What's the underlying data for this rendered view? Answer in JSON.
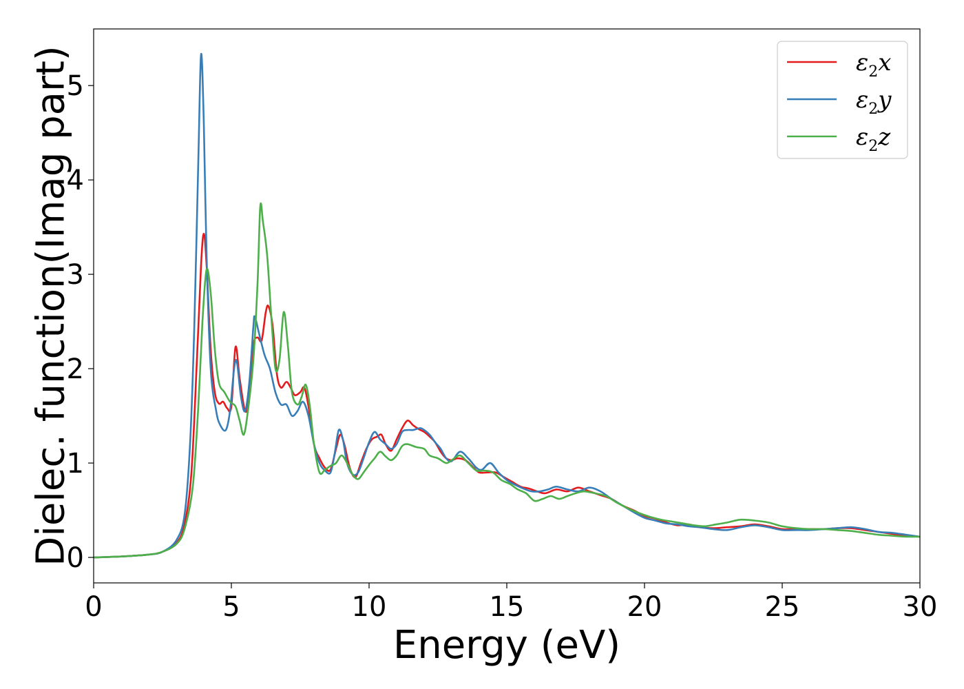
{
  "chart_data": {
    "type": "line",
    "xlabel": "Energy (eV)",
    "ylabel": "Dielec. function(Imag part)",
    "xlim": [
      0,
      30
    ],
    "ylim": [
      -0.27,
      5.6
    ],
    "xticks": [
      0,
      5,
      10,
      15,
      20,
      25,
      30
    ],
    "yticks": [
      0,
      1,
      2,
      3,
      4,
      5
    ],
    "grid": false,
    "legend_position": "top-right",
    "series": [
      {
        "name": "ε₂x",
        "label_base": "ε",
        "label_sub": "2",
        "label_var": "x",
        "color": "#e41a1c",
        "points": [
          [
            0,
            0.0
          ],
          [
            1,
            0.01
          ],
          [
            2,
            0.03
          ],
          [
            2.5,
            0.06
          ],
          [
            3.0,
            0.15
          ],
          [
            3.3,
            0.35
          ],
          [
            3.55,
            0.9
          ],
          [
            3.75,
            2.1
          ],
          [
            3.9,
            3.1
          ],
          [
            4.0,
            3.43
          ],
          [
            4.1,
            3.1
          ],
          [
            4.25,
            2.2
          ],
          [
            4.4,
            1.75
          ],
          [
            4.55,
            1.63
          ],
          [
            4.7,
            1.65
          ],
          [
            4.85,
            1.58
          ],
          [
            5.0,
            1.6
          ],
          [
            5.15,
            2.23
          ],
          [
            5.3,
            1.9
          ],
          [
            5.5,
            1.55
          ],
          [
            5.65,
            1.7
          ],
          [
            5.8,
            2.25
          ],
          [
            5.95,
            2.33
          ],
          [
            6.1,
            2.3
          ],
          [
            6.25,
            2.6
          ],
          [
            6.35,
            2.66
          ],
          [
            6.5,
            2.45
          ],
          [
            6.65,
            1.95
          ],
          [
            6.8,
            1.8
          ],
          [
            7.0,
            1.86
          ],
          [
            7.15,
            1.8
          ],
          [
            7.3,
            1.72
          ],
          [
            7.5,
            1.75
          ],
          [
            7.65,
            1.8
          ],
          [
            7.8,
            1.6
          ],
          [
            8.0,
            1.2
          ],
          [
            8.2,
            1.05
          ],
          [
            8.4,
            0.95
          ],
          [
            8.6,
            0.93
          ],
          [
            8.8,
            1.15
          ],
          [
            8.95,
            1.3
          ],
          [
            9.1,
            1.2
          ],
          [
            9.3,
            0.95
          ],
          [
            9.5,
            0.85
          ],
          [
            9.7,
            1.0
          ],
          [
            9.9,
            1.15
          ],
          [
            10.1,
            1.25
          ],
          [
            10.3,
            1.28
          ],
          [
            10.45,
            1.3
          ],
          [
            10.6,
            1.2
          ],
          [
            10.8,
            1.13
          ],
          [
            11.0,
            1.25
          ],
          [
            11.2,
            1.37
          ],
          [
            11.4,
            1.45
          ],
          [
            11.6,
            1.4
          ],
          [
            11.8,
            1.36
          ],
          [
            12.0,
            1.33
          ],
          [
            12.2,
            1.28
          ],
          [
            12.4,
            1.22
          ],
          [
            12.6,
            1.12
          ],
          [
            12.8,
            1.05
          ],
          [
            13.0,
            1.03
          ],
          [
            13.2,
            1.05
          ],
          [
            13.5,
            1.03
          ],
          [
            13.8,
            0.95
          ],
          [
            14.0,
            0.9
          ],
          [
            14.3,
            0.9
          ],
          [
            14.6,
            0.9
          ],
          [
            14.9,
            0.85
          ],
          [
            15.2,
            0.8
          ],
          [
            15.5,
            0.75
          ],
          [
            15.8,
            0.73
          ],
          [
            16.1,
            0.7
          ],
          [
            16.4,
            0.68
          ],
          [
            16.8,
            0.72
          ],
          [
            17.2,
            0.7
          ],
          [
            17.6,
            0.74
          ],
          [
            18.0,
            0.7
          ],
          [
            18.4,
            0.66
          ],
          [
            18.8,
            0.62
          ],
          [
            19.2,
            0.55
          ],
          [
            19.6,
            0.5
          ],
          [
            20.0,
            0.44
          ],
          [
            20.4,
            0.41
          ],
          [
            20.8,
            0.37
          ],
          [
            21.2,
            0.34
          ],
          [
            21.6,
            0.35
          ],
          [
            22.0,
            0.32
          ],
          [
            22.5,
            0.31
          ],
          [
            23.0,
            0.32
          ],
          [
            23.5,
            0.33
          ],
          [
            24.0,
            0.35
          ],
          [
            24.5,
            0.33
          ],
          [
            25.0,
            0.3
          ],
          [
            25.5,
            0.3
          ],
          [
            26.0,
            0.3
          ],
          [
            26.5,
            0.3
          ],
          [
            27.0,
            0.31
          ],
          [
            27.5,
            0.31
          ],
          [
            28.0,
            0.29
          ],
          [
            28.5,
            0.27
          ],
          [
            29.0,
            0.25
          ],
          [
            29.5,
            0.23
          ],
          [
            30.0,
            0.22
          ]
        ]
      },
      {
        "name": "ε₂y",
        "label_base": "ε",
        "label_sub": "2",
        "label_var": "y",
        "color": "#377eb8",
        "points": [
          [
            0,
            0.0
          ],
          [
            1,
            0.01
          ],
          [
            2,
            0.03
          ],
          [
            2.5,
            0.06
          ],
          [
            3.0,
            0.18
          ],
          [
            3.3,
            0.45
          ],
          [
            3.5,
            1.2
          ],
          [
            3.65,
            2.4
          ],
          [
            3.8,
            4.2
          ],
          [
            3.9,
            5.33
          ],
          [
            4.0,
            4.6
          ],
          [
            4.1,
            3.2
          ],
          [
            4.25,
            2.0
          ],
          [
            4.45,
            1.55
          ],
          [
            4.6,
            1.4
          ],
          [
            4.8,
            1.35
          ],
          [
            4.95,
            1.55
          ],
          [
            5.1,
            2.0
          ],
          [
            5.2,
            2.07
          ],
          [
            5.35,
            1.7
          ],
          [
            5.5,
            1.55
          ],
          [
            5.65,
            1.85
          ],
          [
            5.8,
            2.45
          ],
          [
            5.85,
            2.55
          ],
          [
            6.0,
            2.38
          ],
          [
            6.2,
            2.15
          ],
          [
            6.4,
            2.0
          ],
          [
            6.6,
            1.75
          ],
          [
            6.8,
            1.62
          ],
          [
            7.0,
            1.62
          ],
          [
            7.2,
            1.5
          ],
          [
            7.4,
            1.55
          ],
          [
            7.6,
            1.65
          ],
          [
            7.8,
            1.5
          ],
          [
            8.0,
            1.2
          ],
          [
            8.2,
            1.0
          ],
          [
            8.4,
            0.92
          ],
          [
            8.6,
            0.9
          ],
          [
            8.75,
            1.1
          ],
          [
            8.9,
            1.35
          ],
          [
            9.05,
            1.25
          ],
          [
            9.2,
            1.0
          ],
          [
            9.4,
            0.88
          ],
          [
            9.6,
            0.9
          ],
          [
            9.8,
            1.05
          ],
          [
            10.0,
            1.22
          ],
          [
            10.2,
            1.33
          ],
          [
            10.4,
            1.25
          ],
          [
            10.6,
            1.2
          ],
          [
            10.8,
            1.15
          ],
          [
            11.0,
            1.2
          ],
          [
            11.2,
            1.33
          ],
          [
            11.4,
            1.35
          ],
          [
            11.6,
            1.35
          ],
          [
            11.85,
            1.37
          ],
          [
            12.0,
            1.35
          ],
          [
            12.2,
            1.3
          ],
          [
            12.4,
            1.22
          ],
          [
            12.6,
            1.15
          ],
          [
            12.8,
            1.05
          ],
          [
            13.0,
            1.02
          ],
          [
            13.3,
            1.12
          ],
          [
            13.6,
            1.05
          ],
          [
            13.9,
            0.95
          ],
          [
            14.1,
            0.93
          ],
          [
            14.4,
            1.0
          ],
          [
            14.7,
            0.9
          ],
          [
            15.0,
            0.82
          ],
          [
            15.3,
            0.77
          ],
          [
            15.6,
            0.73
          ],
          [
            15.9,
            0.7
          ],
          [
            16.2,
            0.7
          ],
          [
            16.5,
            0.72
          ],
          [
            16.8,
            0.75
          ],
          [
            17.2,
            0.72
          ],
          [
            17.6,
            0.7
          ],
          [
            18.0,
            0.74
          ],
          [
            18.4,
            0.7
          ],
          [
            18.8,
            0.62
          ],
          [
            19.2,
            0.55
          ],
          [
            19.6,
            0.48
          ],
          [
            20.0,
            0.42
          ],
          [
            20.4,
            0.39
          ],
          [
            20.8,
            0.36
          ],
          [
            21.2,
            0.35
          ],
          [
            21.6,
            0.33
          ],
          [
            22.0,
            0.32
          ],
          [
            22.5,
            0.3
          ],
          [
            23.0,
            0.29
          ],
          [
            23.5,
            0.32
          ],
          [
            24.0,
            0.34
          ],
          [
            24.5,
            0.32
          ],
          [
            25.0,
            0.29
          ],
          [
            25.5,
            0.29
          ],
          [
            26.0,
            0.29
          ],
          [
            26.5,
            0.3
          ],
          [
            27.0,
            0.31
          ],
          [
            27.5,
            0.32
          ],
          [
            28.0,
            0.3
          ],
          [
            28.5,
            0.27
          ],
          [
            29.0,
            0.26
          ],
          [
            29.5,
            0.24
          ],
          [
            30.0,
            0.22
          ]
        ]
      },
      {
        "name": "ε₂z",
        "label_base": "ε",
        "label_sub": "2",
        "label_var": "z",
        "color": "#4daf4a",
        "points": [
          [
            0,
            0.0
          ],
          [
            1,
            0.01
          ],
          [
            2,
            0.03
          ],
          [
            2.5,
            0.06
          ],
          [
            3.0,
            0.14
          ],
          [
            3.3,
            0.3
          ],
          [
            3.6,
            0.75
          ],
          [
            3.8,
            1.6
          ],
          [
            3.95,
            2.5
          ],
          [
            4.1,
            3.05
          ],
          [
            4.25,
            2.8
          ],
          [
            4.4,
            2.2
          ],
          [
            4.55,
            1.85
          ],
          [
            4.75,
            1.75
          ],
          [
            4.95,
            1.65
          ],
          [
            5.15,
            1.6
          ],
          [
            5.3,
            1.45
          ],
          [
            5.45,
            1.3
          ],
          [
            5.6,
            1.55
          ],
          [
            5.8,
            2.1
          ],
          [
            5.95,
            2.9
          ],
          [
            6.05,
            3.72
          ],
          [
            6.15,
            3.55
          ],
          [
            6.3,
            3.2
          ],
          [
            6.45,
            2.55
          ],
          [
            6.6,
            2.0
          ],
          [
            6.75,
            2.1
          ],
          [
            6.9,
            2.6
          ],
          [
            7.05,
            2.25
          ],
          [
            7.2,
            1.75
          ],
          [
            7.4,
            1.62
          ],
          [
            7.55,
            1.7
          ],
          [
            7.7,
            1.83
          ],
          [
            7.85,
            1.6
          ],
          [
            8.0,
            1.2
          ],
          [
            8.2,
            0.9
          ],
          [
            8.4,
            0.93
          ],
          [
            8.6,
            0.97
          ],
          [
            8.8,
            1.0
          ],
          [
            9.0,
            1.08
          ],
          [
            9.2,
            1.0
          ],
          [
            9.4,
            0.88
          ],
          [
            9.6,
            0.83
          ],
          [
            9.8,
            0.9
          ],
          [
            10.0,
            0.98
          ],
          [
            10.2,
            1.05
          ],
          [
            10.4,
            1.12
          ],
          [
            10.6,
            1.07
          ],
          [
            10.8,
            1.03
          ],
          [
            11.0,
            1.08
          ],
          [
            11.2,
            1.18
          ],
          [
            11.4,
            1.2
          ],
          [
            11.7,
            1.17
          ],
          [
            12.0,
            1.15
          ],
          [
            12.2,
            1.08
          ],
          [
            12.5,
            1.05
          ],
          [
            12.8,
            1.0
          ],
          [
            13.0,
            1.03
          ],
          [
            13.3,
            1.08
          ],
          [
            13.6,
            1.0
          ],
          [
            13.9,
            0.92
          ],
          [
            14.2,
            0.92
          ],
          [
            14.5,
            0.9
          ],
          [
            14.8,
            0.82
          ],
          [
            15.1,
            0.78
          ],
          [
            15.4,
            0.72
          ],
          [
            15.7,
            0.68
          ],
          [
            16.0,
            0.6
          ],
          [
            16.3,
            0.62
          ],
          [
            16.6,
            0.65
          ],
          [
            16.9,
            0.62
          ],
          [
            17.2,
            0.65
          ],
          [
            17.5,
            0.68
          ],
          [
            17.8,
            0.7
          ],
          [
            18.2,
            0.68
          ],
          [
            18.6,
            0.65
          ],
          [
            19.0,
            0.58
          ],
          [
            19.4,
            0.52
          ],
          [
            19.8,
            0.47
          ],
          [
            20.2,
            0.43
          ],
          [
            20.6,
            0.4
          ],
          [
            21.0,
            0.38
          ],
          [
            21.4,
            0.36
          ],
          [
            21.8,
            0.34
          ],
          [
            22.2,
            0.33
          ],
          [
            22.6,
            0.35
          ],
          [
            23.0,
            0.37
          ],
          [
            23.5,
            0.4
          ],
          [
            24.0,
            0.39
          ],
          [
            24.5,
            0.37
          ],
          [
            25.0,
            0.33
          ],
          [
            25.5,
            0.31
          ],
          [
            26.0,
            0.3
          ],
          [
            26.5,
            0.3
          ],
          [
            27.0,
            0.29
          ],
          [
            27.5,
            0.28
          ],
          [
            28.0,
            0.26
          ],
          [
            28.5,
            0.24
          ],
          [
            29.0,
            0.23
          ],
          [
            29.5,
            0.22
          ],
          [
            30.0,
            0.22
          ]
        ]
      }
    ]
  }
}
